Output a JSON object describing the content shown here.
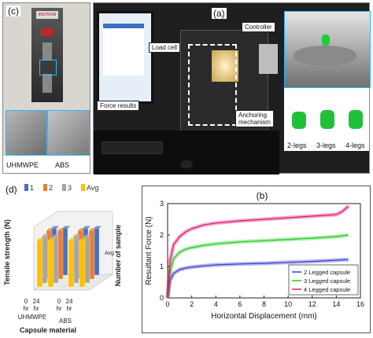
{
  "panel_a": {
    "label": "(a)",
    "callouts": {
      "load_cell": "Load cell",
      "controller": "Controller",
      "force_results": "Force results",
      "anchoring_line1": "Anchoring",
      "anchoring_line2": "mechanism"
    },
    "leg_labels": [
      "2-legs",
      "3-legs",
      "4-legs"
    ],
    "brand": "INSTRON"
  },
  "panel_c": {
    "label": "(c)",
    "material_labels": [
      "UHMWPE",
      "ABS"
    ]
  },
  "panel_d": {
    "label": "(d)",
    "legend": [
      "1",
      "2",
      "3",
      "Avg"
    ],
    "colors": [
      "#4472C4",
      "#ED7D31",
      "#A5A5A5",
      "#FFC000"
    ],
    "ylabel": "Tensile strength (N)",
    "xlabel": "Capsule material",
    "zlabel": "Number of sample",
    "z_ticks": [
      "1",
      "2",
      "3",
      "Avg"
    ],
    "hour_ticks": [
      "0\nhr",
      "24\nhr",
      "0\nhr",
      "24\nhr"
    ],
    "hour_lines": [
      "0",
      "24",
      "0",
      "24"
    ],
    "hr_label": "hr",
    "materials": [
      "UHMWPE",
      "ABS"
    ]
  },
  "chart_data": {
    "type": "line",
    "title": "(b)",
    "xlabel": "Horizontal Displacement (mm)",
    "ylabel": "Resultant Force (N)",
    "xlim": [
      0,
      16
    ],
    "ylim": [
      0,
      3
    ],
    "x_ticks": [
      0,
      2,
      4,
      6,
      8,
      10,
      12,
      14,
      16
    ],
    "y_ticks": [
      0,
      1,
      2,
      3
    ],
    "grid": false,
    "legend_position": "bottom-right",
    "series": [
      {
        "name": "2 Legged capsule",
        "color": "#3a3ad6",
        "x": [
          0,
          0.2,
          0.5,
          1,
          1.5,
          2,
          3,
          4,
          6,
          8,
          10,
          12,
          14,
          15
        ],
        "y": [
          0,
          0.55,
          0.78,
          0.9,
          0.95,
          0.98,
          1.02,
          1.05,
          1.08,
          1.1,
          1.13,
          1.16,
          1.2,
          1.22
        ]
      },
      {
        "name": "3 Legged capsule",
        "color": "#22cc22",
        "x": [
          0,
          0.2,
          0.5,
          1,
          1.5,
          2,
          3,
          4,
          6,
          8,
          10,
          12,
          14,
          15
        ],
        "y": [
          0,
          0.85,
          1.25,
          1.45,
          1.55,
          1.6,
          1.67,
          1.72,
          1.78,
          1.82,
          1.86,
          1.9,
          1.95,
          2.0
        ]
      },
      {
        "name": "4 Legged capsule",
        "color": "#e0156a",
        "x": [
          0,
          0.2,
          0.5,
          1,
          1.5,
          2,
          3,
          4,
          6,
          8,
          10,
          12,
          14,
          14.5,
          15
        ],
        "y": [
          0,
          1.2,
          1.7,
          1.95,
          2.1,
          2.2,
          2.32,
          2.38,
          2.45,
          2.5,
          2.55,
          2.6,
          2.65,
          2.75,
          2.92
        ]
      }
    ]
  },
  "chart_panel_d_data": {
    "type": "bar",
    "categories": [
      "UHMWPE 0 hr",
      "UHMWPE 24 hr",
      "ABS 0 hr",
      "ABS 24 hr"
    ],
    "series": [
      {
        "name": "1",
        "values": [
          27,
          27,
          27,
          27
        ]
      },
      {
        "name": "2",
        "values": [
          28,
          28,
          28,
          28
        ]
      },
      {
        "name": "3",
        "values": [
          27,
          27,
          27,
          27
        ]
      },
      {
        "name": "Avg",
        "values": [
          27,
          27,
          27,
          27
        ]
      }
    ]
  }
}
